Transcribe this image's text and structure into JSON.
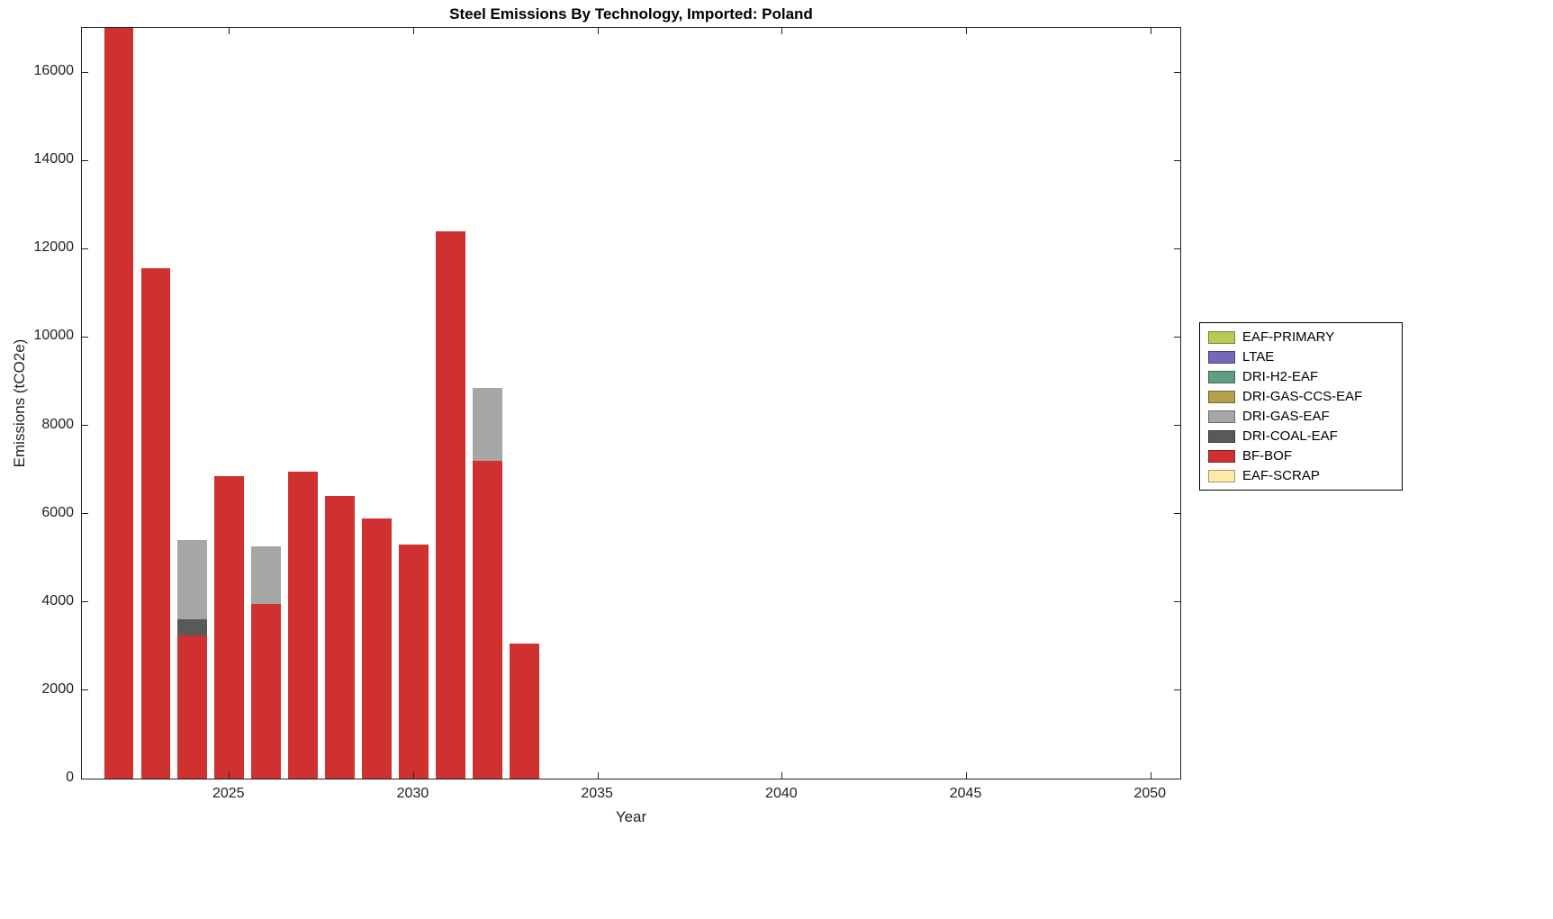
{
  "chart_data": {
    "type": "bar",
    "stacked": true,
    "title": "Steel Emissions By Technology, Imported: Poland",
    "xlabel": "Year",
    "ylabel": "Emissions (tCO2e)",
    "xlim": [
      2021.0,
      2050.8
    ],
    "ylim": [
      0,
      17000
    ],
    "x_ticks": [
      2025,
      2030,
      2035,
      2040,
      2045,
      2050
    ],
    "y_ticks": [
      0,
      2000,
      4000,
      6000,
      8000,
      10000,
      12000,
      14000,
      16000
    ],
    "bar_width_years": 0.8,
    "grid": false,
    "legend_position": "outside-right",
    "legend": [
      {
        "name": "EAF-PRIMARY",
        "color": "#b9ca53"
      },
      {
        "name": "LTAE",
        "color": "#7668b8"
      },
      {
        "name": "DRI-H2-EAF",
        "color": "#5f9e7f"
      },
      {
        "name": "DRI-GAS-CCS-EAF",
        "color": "#b3a24b"
      },
      {
        "name": "DRI-GAS-EAF",
        "color": "#a6a6a6"
      },
      {
        "name": "DRI-COAL-EAF",
        "color": "#595959"
      },
      {
        "name": "BF-BOF",
        "color": "#cf3130"
      },
      {
        "name": "EAF-SCRAP",
        "color": "#fde9a9"
      }
    ],
    "bars": [
      {
        "year": 2022,
        "clipped_at_top": true,
        "segments": [
          {
            "tech": "BF-BOF",
            "value": 17100
          }
        ]
      },
      {
        "year": 2023,
        "segments": [
          {
            "tech": "BF-BOF",
            "value": 11550
          }
        ]
      },
      {
        "year": 2024,
        "segments": [
          {
            "tech": "BF-BOF",
            "value": 3250
          },
          {
            "tech": "DRI-COAL-EAF",
            "value": 350
          },
          {
            "tech": "DRI-GAS-EAF",
            "value": 1800
          }
        ]
      },
      {
        "year": 2025,
        "segments": [
          {
            "tech": "BF-BOF",
            "value": 6850
          }
        ]
      },
      {
        "year": 2026,
        "segments": [
          {
            "tech": "BF-BOF",
            "value": 3950
          },
          {
            "tech": "DRI-GAS-EAF",
            "value": 1300
          }
        ]
      },
      {
        "year": 2027,
        "segments": [
          {
            "tech": "BF-BOF",
            "value": 6950
          }
        ]
      },
      {
        "year": 2028,
        "segments": [
          {
            "tech": "BF-BOF",
            "value": 6400
          }
        ]
      },
      {
        "year": 2029,
        "segments": [
          {
            "tech": "BF-BOF",
            "value": 5900
          }
        ]
      },
      {
        "year": 2030,
        "segments": [
          {
            "tech": "BF-BOF",
            "value": 5300
          }
        ]
      },
      {
        "year": 2031,
        "segments": [
          {
            "tech": "BF-BOF",
            "value": 12400
          }
        ]
      },
      {
        "year": 2032,
        "segments": [
          {
            "tech": "BF-BOF",
            "value": 7200
          },
          {
            "tech": "DRI-GAS-EAF",
            "value": 1650
          }
        ]
      },
      {
        "year": 2033,
        "segments": [
          {
            "tech": "BF-BOF",
            "value": 3050
          }
        ]
      }
    ]
  }
}
